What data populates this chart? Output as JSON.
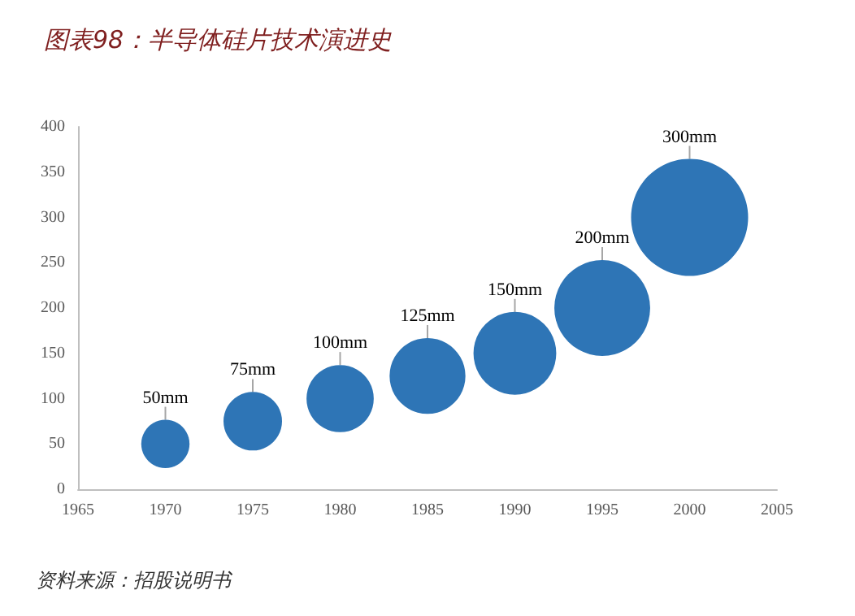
{
  "chart_data": {
    "type": "bubble",
    "title": "图表98：半导体硅片技术演进史",
    "annotations": [
      "资料来源：招股说明书"
    ],
    "x": [
      1970,
      1975,
      1980,
      1985,
      1990,
      1995,
      2000
    ],
    "values": [
      50,
      75,
      100,
      125,
      150,
      200,
      300
    ],
    "sizes": [
      0.17,
      0.25,
      0.33,
      0.42,
      0.5,
      0.67,
      1
    ],
    "value_labels": [
      "50mm",
      "75mm",
      "100mm",
      "125mm",
      "150mm",
      "200mm",
      "300mm"
    ],
    "color": "#2e75b6",
    "xlim": [
      1965,
      2005
    ],
    "xticks": [
      1965,
      1970,
      1975,
      1980,
      1985,
      1990,
      1995,
      2000,
      2005
    ],
    "ylim": [
      0,
      400
    ],
    "yticks": [
      0,
      50,
      100,
      150,
      200,
      250,
      300,
      350,
      400
    ],
    "grid": false
  }
}
